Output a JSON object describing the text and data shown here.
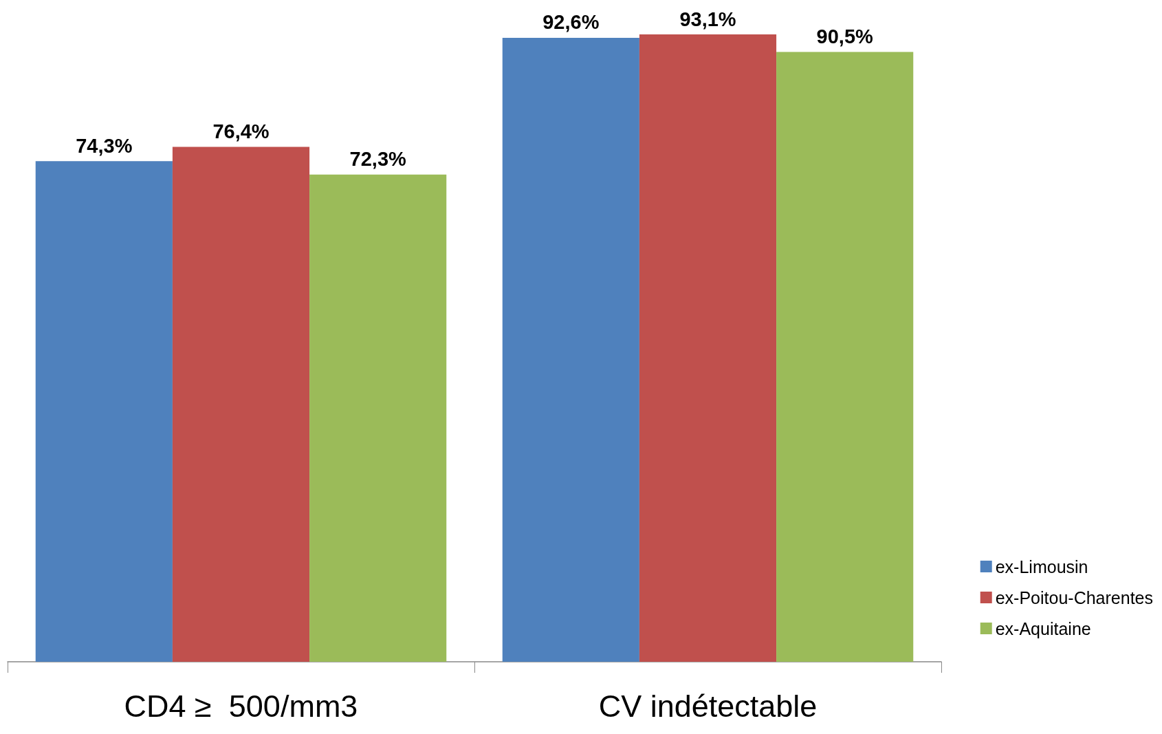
{
  "chart_data": {
    "type": "bar",
    "categories": [
      "CD4 ≥  500/mm3",
      "CV indétectable"
    ],
    "series": [
      {
        "name": "ex-Limousin",
        "color": "#4f81bd",
        "values": [
          74.3,
          92.6
        ],
        "value_labels": [
          "74,3%",
          "92,6%"
        ]
      },
      {
        "name": "ex-Poitou-Charentes",
        "color": "#c0504d",
        "values": [
          76.4,
          93.1
        ],
        "value_labels": [
          "76,4%",
          "93,1%"
        ]
      },
      {
        "name": "ex-Aquitaine",
        "color": "#9bbb59",
        "values": [
          72.3,
          90.5
        ],
        "value_labels": [
          "72,3%",
          "90,5%"
        ]
      }
    ],
    "legend": "right"
  }
}
